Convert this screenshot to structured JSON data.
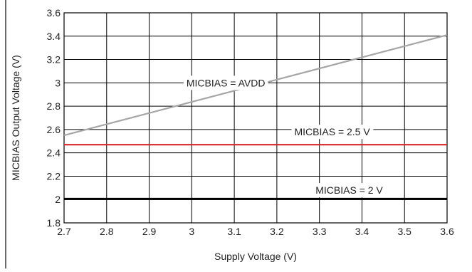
{
  "chart_data": {
    "type": "line",
    "title": "",
    "xlabel": "Supply Voltage (V)",
    "ylabel": "MICBIAS Output Voltage (V)",
    "xlim": [
      2.7,
      3.6
    ],
    "ylim": [
      1.8,
      3.6
    ],
    "x_ticks": [
      2.7,
      2.8,
      2.9,
      3.0,
      3.1,
      3.2,
      3.3,
      3.4,
      3.5,
      3.6
    ],
    "x_tick_labels": [
      "2.7",
      "2.8",
      "2.9",
      "3",
      "3.1",
      "3.2",
      "3.3",
      "3.4",
      "3.5",
      "3.6"
    ],
    "y_ticks": [
      1.8,
      2.0,
      2.2,
      2.4,
      2.6,
      2.8,
      3.0,
      3.2,
      3.4,
      3.6
    ],
    "y_tick_labels": [
      "1.8",
      "2",
      "2.2",
      "2.4",
      "2.6",
      "2.8",
      "3",
      "3.2",
      "3.4",
      "3.6"
    ],
    "grid": true,
    "series": [
      {
        "name": "MICBIAS = AVDD",
        "color": "#a6a6a6",
        "x": [
          2.7,
          3.6
        ],
        "y": [
          2.55,
          3.41
        ]
      },
      {
        "name": "MICBIAS = 2.5 V",
        "color": "#d62728",
        "x": [
          2.7,
          3.6
        ],
        "y": [
          2.47,
          2.47
        ]
      },
      {
        "name": "MICBIAS = 2 V",
        "color": "#000000",
        "x": [
          2.7,
          3.6
        ],
        "y": [
          2.005,
          2.005
        ]
      }
    ],
    "annotations": [
      {
        "text": "MICBIAS = AVDD",
        "series": 0,
        "x": 3.08,
        "y": 3.0
      },
      {
        "text": "MICBIAS = 2.5 V",
        "series": 1,
        "x": 3.33,
        "y": 2.58
      },
      {
        "text": "MICBIAS = 2 V",
        "series": 2,
        "x": 3.37,
        "y": 2.08
      }
    ]
  }
}
